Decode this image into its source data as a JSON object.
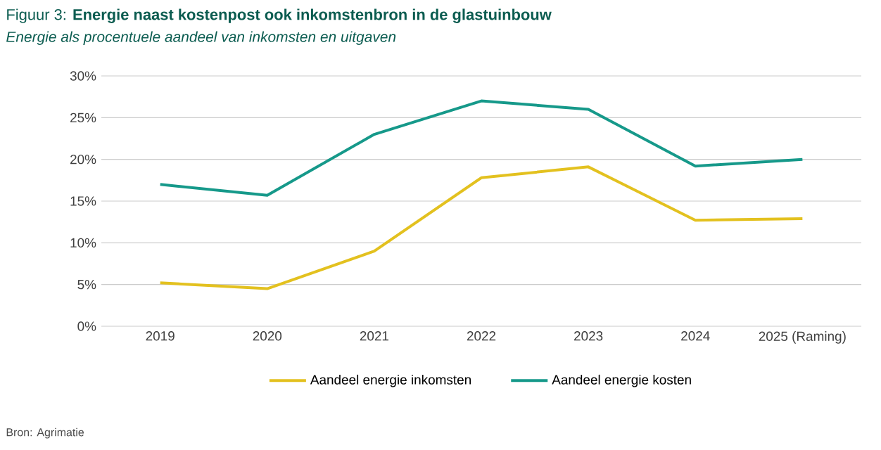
{
  "chart_data": {
    "type": "line",
    "title": "Figuur 3: **Energie naast kostenpost ook inkomstenbron in de glastuinbouw**",
    "subtitle": "Energie als procentuele aandeel van inkomsten en uitgaven",
    "categories": [
      "2019",
      "2020",
      "2021",
      "2022",
      "2023",
      "2024",
      "2025 (Raming)"
    ],
    "series": [
      {
        "name": "Aandeel energie inkomsten",
        "color": "#e3c11f",
        "values": [
          5.2,
          4.5,
          9,
          17.8,
          19.1,
          12.7,
          12.9
        ]
      },
      {
        "name": "Aandeel energie kosten",
        "color": "#16998a",
        "values": [
          17,
          15.7,
          23,
          27,
          26,
          19.2,
          20
        ]
      }
    ],
    "ylim": [
      0,
      30
    ],
    "yticks": [
      {
        "value": 0,
        "label": "0%"
      },
      {
        "value": 5,
        "label": "5%"
      },
      {
        "value": 10,
        "label": "10%"
      },
      {
        "value": 15,
        "label": "15%"
      },
      {
        "value": 20,
        "label": "20%"
      },
      {
        "value": 25,
        "label": "25%"
      },
      {
        "value": 30,
        "label": "30%"
      }
    ],
    "grid": "y",
    "legend": "bottom",
    "marker": "none",
    "line_style": "solid",
    "annotations": [
      "Bron: Agrimatie"
    ]
  }
}
